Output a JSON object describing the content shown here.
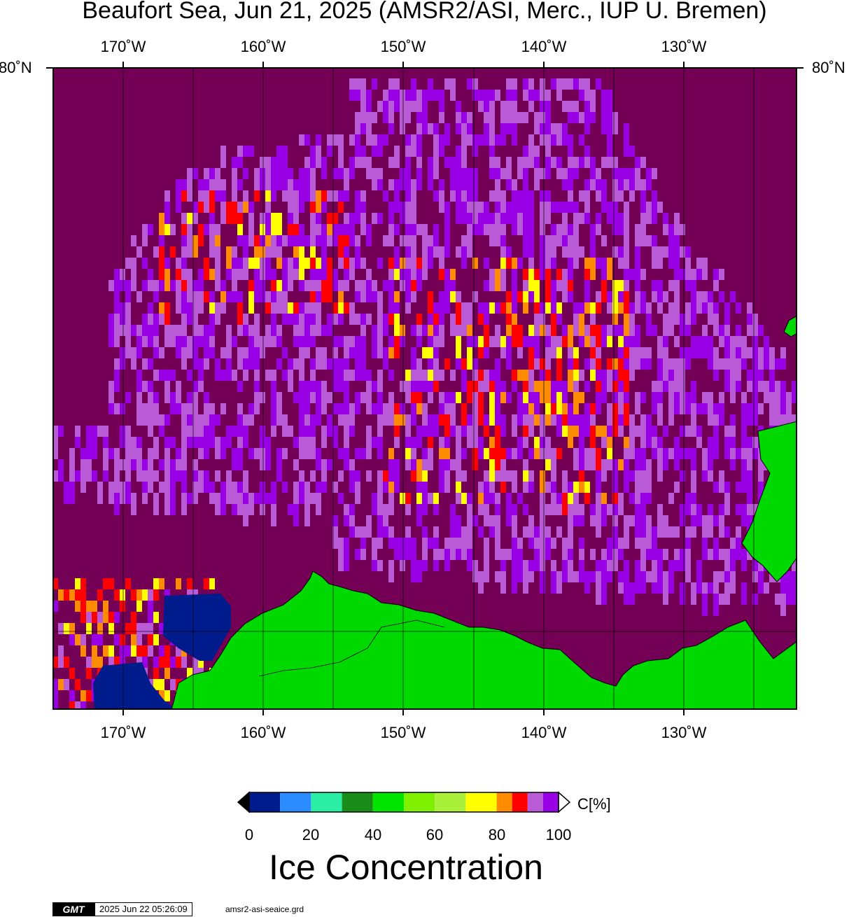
{
  "title": "Beaufort Sea, Jun 21, 2025 (AMSR2/ASI, Merc., IUP U. Bremen)",
  "lon_labels": [
    "170˚W",
    "160˚W",
    "150˚W",
    "140˚W",
    "130˚W"
  ],
  "lat_label": "80˚N",
  "colorbar": {
    "ticks": [
      "0",
      "20",
      "40",
      "60",
      "80",
      "100"
    ],
    "unit": "C[%]",
    "title": "Ice Concentration",
    "colors": [
      "#001c8c",
      "#2b8cff",
      "#2aeea5",
      "#1a8c1a",
      "#00e400",
      "#7ff000",
      "#a8f03a",
      "#ffff00",
      "#ff8c00",
      "#ff0000",
      "#b95ad6",
      "#9a00e6"
    ]
  },
  "map_colors": {
    "open_water": "#730055",
    "land": "#00d900",
    "low_ice": "#001c8c"
  },
  "footer": {
    "logo": "GMT",
    "timestamp": "2025 Jun 22 05:26:09",
    "filename": "amsr2-asi-seaice.grd"
  }
}
